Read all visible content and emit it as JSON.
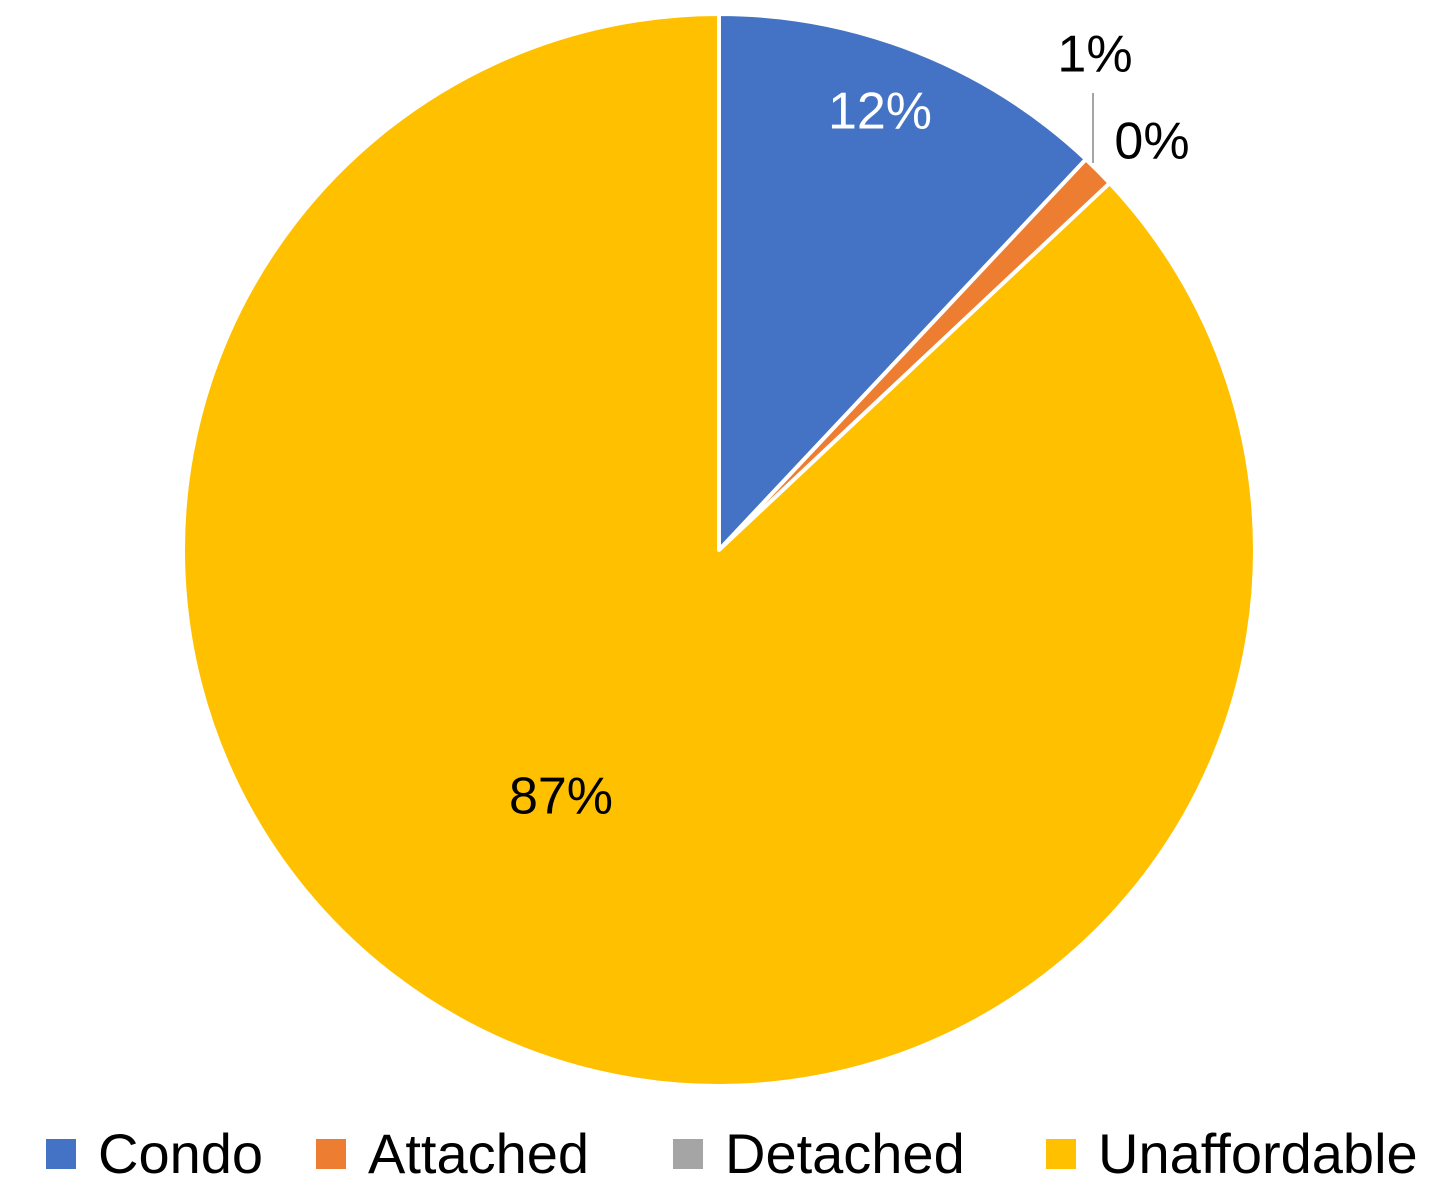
{
  "chart_data": {
    "type": "pie",
    "title": "",
    "start_angle_deg": 0,
    "direction": "clockwise",
    "slices": [
      {
        "name": "Condo",
        "value": 12,
        "label": "12%",
        "color": "#4472C4",
        "label_color": "#FFFFFF"
      },
      {
        "name": "Attached",
        "value": 1,
        "label": "1%",
        "color": "#ED7D31",
        "label_color": "#000000"
      },
      {
        "name": "Detached",
        "value": 0,
        "label": "0%",
        "color": "#A5A5A5",
        "label_color": "#000000"
      },
      {
        "name": "Unaffordable",
        "value": 87,
        "label": "87%",
        "color": "#FFC000",
        "label_color": "#000000"
      }
    ],
    "legend": {
      "position": "bottom",
      "items": [
        "Condo",
        "Attached",
        "Detached",
        "Unaffordable"
      ]
    }
  },
  "legend": {
    "items": [
      {
        "label": "Condo",
        "color": "#4472C4"
      },
      {
        "label": "Attached",
        "color": "#ED7D31"
      },
      {
        "label": "Detached",
        "color": "#A5A5A5"
      },
      {
        "label": "Unaffordable",
        "color": "#FFC000"
      }
    ]
  }
}
